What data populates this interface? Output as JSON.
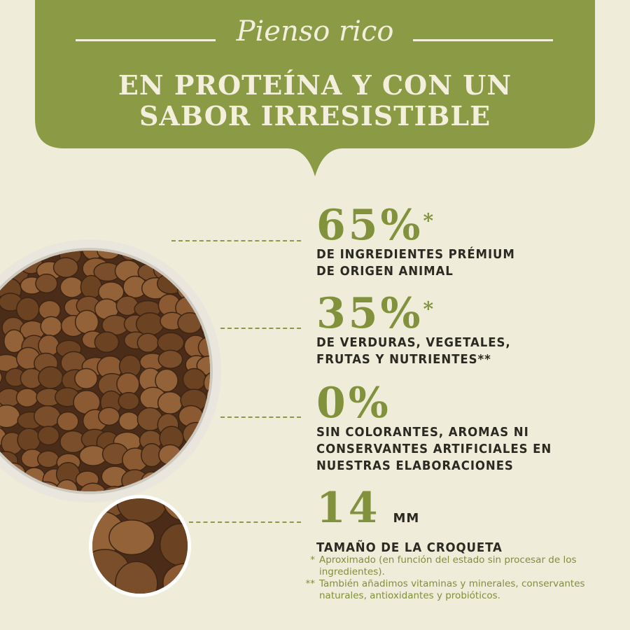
{
  "banner": {
    "script": "Pienso rico",
    "title_line1": "EN PROTEÍNA Y CON UN",
    "title_line2": "SABOR IRRESISTIBLE"
  },
  "colors": {
    "background": "#f0ecda",
    "banner": "#8a9a45",
    "accent": "#82923c",
    "text": "#2a2a22"
  },
  "stats": [
    {
      "value": "65%",
      "mark": "*",
      "line1": "DE INGREDIENTES PRÉMIUM",
      "line2": "DE ORIGEN ANIMAL"
    },
    {
      "value": "35%",
      "mark": "*",
      "line1": "DE VERDURAS, VEGETALES,",
      "line2": "FRUTAS Y NUTRIENTES**"
    },
    {
      "value": "0%",
      "line1": "SIN COLORANTES, AROMAS NI",
      "line2": "CONSERVANTES ARTIFICIALES EN",
      "line3": "NUESTRAS ELABORACIONES"
    },
    {
      "value": "14",
      "unit": "MM",
      "line1": "TAMAÑO DE LA CROQUETA"
    }
  ],
  "footnotes": [
    {
      "mark": "*",
      "text": "Aproximado (en función del estado sin procesar de los ingredientes)."
    },
    {
      "mark": "**",
      "text": "También añadimos vitaminas y minerales, conservantes naturales, antioxidantes y probióticos."
    }
  ]
}
